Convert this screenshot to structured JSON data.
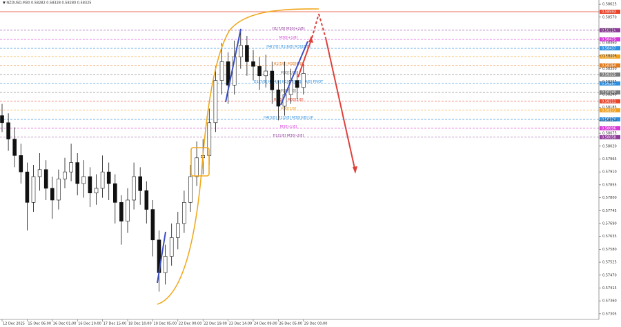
{
  "chart_data": {
    "type": "candlestick",
    "title": "▼ NZDUSD,M30  0.58282 0.58328 0.58280 0.58325",
    "categories": [
      "12 Dec 2025",
      null,
      null,
      null,
      "15 Dec 06:00",
      null,
      null,
      null,
      "16 Dec 01:00",
      null,
      null,
      null,
      "16 Dec 20:00",
      null,
      null,
      null,
      "17 Dec 15:00",
      null,
      null,
      null,
      "18 Dec 10:00",
      null,
      null,
      null,
      "19 Dec 05:00",
      null,
      null,
      null,
      "22 Dec 00:00",
      null,
      null,
      null,
      "22 Dec 19:00",
      null,
      null,
      null,
      "23 Dec 14:00",
      null,
      null,
      null,
      "24 Dec 09:00",
      null,
      null,
      null,
      "26 Dec 05:00",
      null,
      null,
      null,
      "29 Dec 00:00"
    ],
    "open": [
      0.5815,
      0.5812,
      0.5805,
      0.5798,
      0.5791,
      0.5778,
      0.5789,
      0.5792,
      0.5784,
      0.5779,
      0.5788,
      0.5791,
      0.5795,
      0.5786,
      0.5789,
      0.5782,
      0.5784,
      0.5791,
      0.5786,
      0.5778,
      0.577,
      0.5779,
      0.5789,
      0.5783,
      0.5775,
      0.5762,
      0.5748,
      0.5755,
      0.5763,
      0.5769,
      0.5778,
      0.5789,
      0.5797,
      0.5798,
      0.5812,
      0.583,
      0.5838,
      0.5828,
      0.584,
      0.5845,
      0.5838,
      0.5836,
      0.5832,
      0.5834,
      0.5826,
      0.5819,
      0.5824,
      0.583,
      0.5827
    ],
    "high": [
      0.582,
      0.5816,
      0.581,
      0.5803,
      0.5795,
      0.5794,
      0.5799,
      0.5796,
      0.5789,
      0.5792,
      0.5797,
      0.5803,
      0.5799,
      0.5796,
      0.5793,
      0.579,
      0.5798,
      0.5795,
      0.579,
      0.5781,
      0.5784,
      0.5795,
      0.5793,
      0.5787,
      0.5779,
      0.5766,
      0.576,
      0.5769,
      0.5774,
      0.5783,
      0.5794,
      0.5804,
      0.5805,
      0.5818,
      0.5836,
      0.5846,
      0.5842,
      0.5847,
      0.5852,
      0.5849,
      0.5843,
      0.584,
      0.5841,
      0.5838,
      0.583,
      0.5838,
      0.5835,
      0.5834,
      0.5837
    ],
    "low": [
      0.5808,
      0.58,
      0.5793,
      0.5786,
      0.5766,
      0.5774,
      0.5783,
      0.5779,
      0.5771,
      0.5775,
      0.5784,
      0.5787,
      0.5781,
      0.578,
      0.5776,
      0.5777,
      0.578,
      0.5779,
      0.5769,
      0.576,
      0.5765,
      0.5775,
      0.5777,
      0.5769,
      0.5755,
      0.574,
      0.5743,
      0.5751,
      0.5758,
      0.5765,
      0.5774,
      0.5785,
      0.579,
      0.5794,
      0.5808,
      0.5824,
      0.582,
      0.5824,
      0.5835,
      0.5832,
      0.583,
      0.5826,
      0.5827,
      0.582,
      0.5813,
      0.5815,
      0.582,
      0.5822,
      0.5824
    ],
    "close": [
      0.5812,
      0.5805,
      0.5798,
      0.5791,
      0.5778,
      0.5789,
      0.5792,
      0.5784,
      0.5779,
      0.5788,
      0.5791,
      0.5795,
      0.5786,
      0.5789,
      0.5782,
      0.5784,
      0.5791,
      0.5786,
      0.5778,
      0.577,
      0.5779,
      0.5789,
      0.5783,
      0.5775,
      0.5762,
      0.5748,
      0.5755,
      0.5763,
      0.5769,
      0.5778,
      0.5789,
      0.5797,
      0.5798,
      0.5812,
      0.583,
      0.5838,
      0.5828,
      0.584,
      0.5845,
      0.5838,
      0.5836,
      0.5832,
      0.5834,
      0.5826,
      0.5819,
      0.5824,
      0.583,
      0.5827,
      0.5833
    ],
    "ylim": [
      0.57284,
      0.58643
    ],
    "yticks": [
      {
        "value": 0.57305,
        "label": "0.57305"
      },
      {
        "value": 0.5736,
        "label": "0.57360"
      },
      {
        "value": 0.57415,
        "label": "0.57415"
      },
      {
        "value": 0.5747,
        "label": "0.57470"
      },
      {
        "value": 0.57525,
        "label": "0.57525"
      },
      {
        "value": 0.5758,
        "label": "0.57580"
      },
      {
        "value": 0.57635,
        "label": "0.57635"
      },
      {
        "value": 0.5769,
        "label": "0.57690"
      },
      {
        "value": 0.57745,
        "label": "0.57745"
      },
      {
        "value": 0.578,
        "label": "0.57800"
      },
      {
        "value": 0.57855,
        "label": "0.57855"
      },
      {
        "value": 0.5791,
        "label": "0.57910"
      },
      {
        "value": 0.57965,
        "label": "0.57965"
      },
      {
        "value": 0.5802,
        "label": "0.58020"
      },
      {
        "value": 0.58075,
        "label": "0.58075"
      },
      {
        "value": 0.5813,
        "label": "0.58130"
      },
      {
        "value": 0.58185,
        "label": "0.58185"
      },
      {
        "value": 0.5824,
        "label": "0.58240"
      },
      {
        "value": 0.58295,
        "label": "0.58295"
      },
      {
        "value": 0.5835,
        "label": "0.58350"
      },
      {
        "value": 0.58405,
        "label": "0.58405"
      },
      {
        "value": 0.5846,
        "label": "0.58460"
      },
      {
        "value": 0.58515,
        "label": "0.58515"
      },
      {
        "value": 0.5857,
        "label": "0.58570"
      },
      {
        "value": 0.58625,
        "label": "0.58625"
      }
    ],
    "levels": [
      {
        "price": 0.58593,
        "color": "#e8452c"
      },
      {
        "price": 0.58514,
        "color": "#8e3a9a",
        "text": "H1[7/8] M30[+2/8]"
      },
      {
        "price": 0.58475,
        "color": "#d63ad6",
        "text": "M30[+1/8]"
      },
      {
        "price": 0.58437,
        "color": "#2f8fe0",
        "text": "H4[7/8] H1[6/8] M30[8/8]"
      },
      {
        "price": 0.58402,
        "color": "#f0a020"
      },
      {
        "price": 0.58364,
        "color": "#e07a1c",
        "text": "H1[5/8] M30[6/8]"
      },
      {
        "price": 0.58325,
        "color": "#7a7a7a",
        "text": "M30[5/8]"
      },
      {
        "price": 0.58287,
        "color": "#2f8fe0",
        "text": "D1[7/8] H4[4/8] H1[4/8] M30[4/8] PIVOT"
      },
      {
        "price": 0.58249,
        "color": "#7a7a7a",
        "text": "M30[3/8]"
      },
      {
        "price": 0.58211,
        "color": "#e8452c",
        "text": "H1[3/8] M30[2/8]"
      },
      {
        "price": 0.58173,
        "color": "#f0a020",
        "text": "M30[1/8]"
      },
      {
        "price": 0.58134,
        "color": "#2f8fe0",
        "text": "H4[3/8] H1[2/8] M30[0/8] UP"
      },
      {
        "price": 0.58096,
        "color": "#d63ad6",
        "text": "M30[-1/8]"
      },
      {
        "price": 0.58058,
        "color": "#8e3a9a",
        "text": "H1[1/8] M30[-2/8]"
      }
    ]
  }
}
